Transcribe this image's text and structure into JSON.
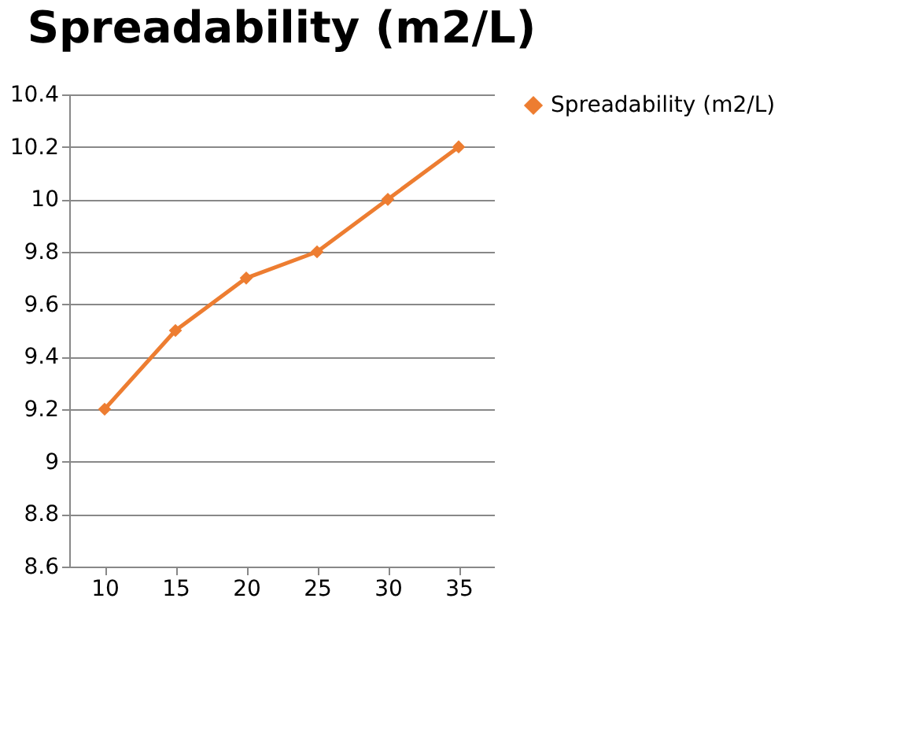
{
  "chart_data": {
    "type": "line",
    "title": "Spreadability (m2/L)",
    "categories": [
      "10",
      "15",
      "20",
      "25",
      "30",
      "35"
    ],
    "series": [
      {
        "name": "Spreadability (m2/L)",
        "color": "#ed7d31",
        "values": [
          9.2,
          9.5,
          9.7,
          9.8,
          10.0,
          10.2
        ]
      }
    ],
    "ylim": [
      8.6,
      10.4
    ],
    "yticks": [
      8.6,
      8.8,
      9,
      9.2,
      9.4,
      9.6,
      9.8,
      10,
      10.2,
      10.4
    ],
    "grid": "y",
    "legend": "right",
    "marker": "diamond",
    "line_style": "solid"
  }
}
